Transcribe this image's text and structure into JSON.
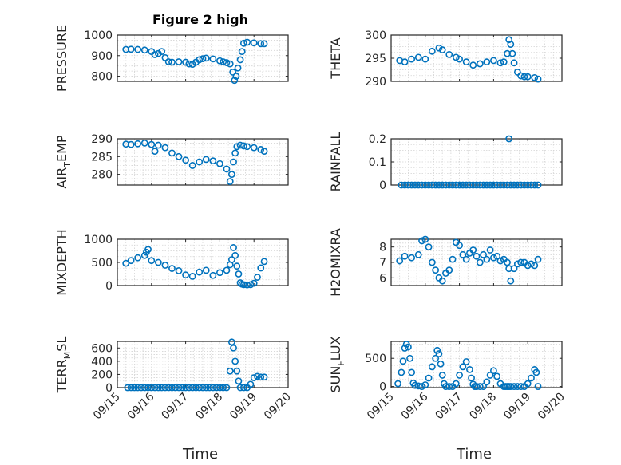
{
  "figure": {
    "title": "Figure 2 high",
    "xlabel": "Time"
  },
  "style": {
    "marker_color": "#0072BD",
    "axis_color": "#262626",
    "grid_color": "#d4d4d4"
  },
  "chart_data": [
    {
      "type": "scatter",
      "title": "Figure 2 high",
      "ylabel_parts": [
        {
          "t": "PRESSURE"
        }
      ],
      "ylim": [
        775,
        1000
      ],
      "yticks": [
        800,
        900,
        1000
      ],
      "yticklabels": [
        "800",
        "900",
        "1000"
      ],
      "xlim": [
        15,
        20
      ],
      "xticks": [
        15,
        16,
        17,
        18,
        19,
        20
      ],
      "xticklabels": [],
      "series": [
        {
          "x": [
            15.25,
            15.4,
            15.6,
            15.8,
            16.0,
            16.1,
            16.2,
            16.3,
            16.4,
            16.5,
            16.6,
            16.8,
            17.0,
            17.1,
            17.2,
            17.3,
            17.4,
            17.5,
            17.6,
            17.8,
            18.0,
            18.1,
            18.2,
            18.3,
            18.38,
            18.43,
            18.48,
            18.53,
            18.6,
            18.65,
            18.7,
            18.8,
            19.0,
            19.2,
            19.3
          ],
          "y": [
            930,
            931,
            930,
            927,
            920,
            905,
            910,
            920,
            890,
            870,
            868,
            870,
            868,
            860,
            858,
            868,
            880,
            885,
            888,
            884,
            875,
            870,
            866,
            860,
            820,
            780,
            800,
            840,
            880,
            920,
            960,
            965,
            962,
            958,
            958
          ]
        }
      ]
    },
    {
      "type": "scatter",
      "ylabel_parts": [
        {
          "t": "THETA"
        }
      ],
      "ylim": [
        290,
        300
      ],
      "yticks": [
        290,
        295,
        300
      ],
      "yticklabels": [
        "290",
        "295",
        "300"
      ],
      "xlim": [
        15,
        20
      ],
      "xticks": [
        15,
        16,
        17,
        18,
        19,
        20
      ],
      "xticklabels": [],
      "series": [
        {
          "x": [
            15.25,
            15.4,
            15.6,
            15.8,
            16.0,
            16.2,
            16.4,
            16.5,
            16.7,
            16.9,
            17.0,
            17.2,
            17.4,
            17.6,
            17.8,
            18.0,
            18.2,
            18.3,
            18.4,
            18.45,
            18.5,
            18.55,
            18.6,
            18.7,
            18.8,
            18.9,
            19.0,
            19.2,
            19.3
          ],
          "y": [
            294.5,
            294.2,
            294.8,
            295.2,
            294.8,
            296.5,
            297.2,
            296.8,
            295.8,
            295.2,
            294.8,
            294.2,
            293.5,
            293.8,
            294.2,
            294.5,
            294.0,
            294.2,
            296.0,
            299.0,
            298.0,
            296.0,
            294.0,
            292.0,
            291.2,
            291.0,
            291.0,
            290.8,
            290.5
          ]
        }
      ]
    },
    {
      "type": "scatter",
      "ylabel_parts": [
        {
          "t": "AIR"
        },
        {
          "t": "T",
          "sub": true
        },
        {
          "t": "EMP"
        }
      ],
      "ylim": [
        277,
        290
      ],
      "yticks": [
        280,
        285,
        290
      ],
      "yticklabels": [
        "280",
        "285",
        "290"
      ],
      "xlim": [
        15,
        20
      ],
      "xticks": [
        15,
        16,
        17,
        18,
        19,
        20
      ],
      "xticklabels": [],
      "series": [
        {
          "x": [
            15.25,
            15.4,
            15.6,
            15.8,
            16.0,
            16.1,
            16.2,
            16.4,
            16.6,
            16.8,
            17.0,
            17.2,
            17.4,
            17.6,
            17.8,
            18.0,
            18.2,
            18.3,
            18.35,
            18.4,
            18.45,
            18.5,
            18.6,
            18.7,
            18.8,
            19.0,
            19.2,
            19.3
          ],
          "y": [
            288.5,
            288.4,
            288.6,
            288.8,
            288.4,
            286.5,
            288.2,
            287.5,
            286.0,
            285.0,
            284.0,
            282.5,
            283.5,
            284.2,
            283.8,
            283.0,
            281.5,
            278.0,
            280.0,
            283.5,
            286.0,
            287.8,
            288.2,
            288.0,
            287.8,
            287.5,
            287.0,
            286.5
          ]
        }
      ]
    },
    {
      "type": "scatter",
      "ylabel_parts": [
        {
          "t": "RAINFALL"
        }
      ],
      "ylim": [
        0,
        0.2
      ],
      "yticks": [
        0,
        0.1,
        0.2
      ],
      "yticklabels": [
        "0",
        "0.1",
        "0.2"
      ],
      "xlim": [
        15,
        20
      ],
      "xticks": [
        15,
        16,
        17,
        18,
        19,
        20
      ],
      "xticklabels": [],
      "series": [
        {
          "x": [
            15.3,
            15.4,
            15.5,
            15.6,
            15.7,
            15.8,
            15.9,
            16.0,
            16.1,
            16.2,
            16.3,
            16.4,
            16.5,
            16.6,
            16.7,
            16.8,
            16.9,
            17.0,
            17.1,
            17.2,
            17.3,
            17.4,
            17.5,
            17.6,
            17.7,
            17.8,
            17.9,
            18.0,
            18.1,
            18.2,
            18.3,
            18.4,
            18.5,
            18.6,
            18.7,
            18.8,
            18.9,
            19.0,
            19.1,
            19.2,
            19.3,
            18.45
          ],
          "y": [
            0,
            0,
            0,
            0,
            0,
            0,
            0,
            0,
            0,
            0,
            0,
            0,
            0,
            0,
            0,
            0,
            0,
            0,
            0,
            0,
            0,
            0,
            0,
            0,
            0,
            0,
            0,
            0,
            0,
            0,
            0,
            0,
            0,
            0,
            0,
            0,
            0,
            0,
            0,
            0,
            0,
            0.2
          ]
        }
      ]
    },
    {
      "type": "scatter",
      "ylabel_parts": [
        {
          "t": "MIXDEPTH"
        }
      ],
      "ylim": [
        0,
        1000
      ],
      "yticks": [
        0,
        500,
        1000
      ],
      "yticklabels": [
        "0",
        "500",
        "1000"
      ],
      "xlim": [
        15,
        20
      ],
      "xticks": [
        15,
        16,
        17,
        18,
        19,
        20
      ],
      "xticklabels": [],
      "series": [
        {
          "x": [
            15.25,
            15.4,
            15.6,
            15.8,
            15.85,
            15.9,
            16.0,
            16.2,
            16.4,
            16.6,
            16.8,
            17.0,
            17.2,
            17.4,
            17.6,
            17.8,
            18.0,
            18.2,
            18.3,
            18.35,
            18.4,
            18.45,
            18.5,
            18.55,
            18.6,
            18.65,
            18.7,
            18.8,
            18.9,
            19.0,
            19.1,
            19.2,
            19.3
          ],
          "y": [
            480,
            540,
            600,
            650,
            720,
            780,
            540,
            500,
            440,
            370,
            320,
            230,
            200,
            290,
            330,
            220,
            280,
            330,
            450,
            560,
            820,
            650,
            420,
            250,
            60,
            30,
            20,
            15,
            20,
            50,
            180,
            380,
            520
          ]
        }
      ]
    },
    {
      "type": "scatter",
      "ylabel_parts": [
        {
          "t": "H2OMIXRA"
        }
      ],
      "ylim": [
        5.5,
        8.5
      ],
      "yticks": [
        6,
        7,
        8
      ],
      "yticklabels": [
        "6",
        "7",
        "8"
      ],
      "xlim": [
        15,
        20
      ],
      "xticks": [
        15,
        16,
        17,
        18,
        19,
        20
      ],
      "xticklabels": [],
      "series": [
        {
          "x": [
            15.25,
            15.4,
            15.6,
            15.8,
            15.9,
            16.0,
            16.1,
            16.2,
            16.3,
            16.4,
            16.5,
            16.6,
            16.7,
            16.8,
            16.9,
            17.0,
            17.1,
            17.2,
            17.3,
            17.4,
            17.5,
            17.6,
            17.7,
            17.8,
            17.9,
            18.0,
            18.1,
            18.2,
            18.3,
            18.4,
            18.45,
            18.5,
            18.6,
            18.7,
            18.8,
            18.9,
            19.0,
            19.1,
            19.2,
            19.3
          ],
          "y": [
            7.1,
            7.4,
            7.3,
            7.5,
            8.4,
            8.5,
            8.0,
            7.0,
            6.5,
            6.0,
            5.8,
            6.3,
            6.5,
            7.2,
            8.3,
            8.1,
            7.5,
            7.2,
            7.6,
            7.8,
            7.4,
            7.0,
            7.5,
            7.2,
            7.8,
            7.3,
            7.4,
            7.1,
            7.2,
            7.0,
            6.6,
            5.8,
            6.6,
            6.9,
            7.0,
            7.0,
            6.8,
            6.9,
            6.8,
            7.2
          ]
        }
      ]
    },
    {
      "type": "scatter",
      "ylabel_parts": [
        {
          "t": "TERR"
        },
        {
          "t": "M",
          "sub": true
        },
        {
          "t": "SL"
        }
      ],
      "ylim": [
        0,
        700
      ],
      "yticks": [
        0,
        200,
        400,
        600
      ],
      "yticklabels": [
        "0",
        "200",
        "400",
        "600"
      ],
      "xlim": [
        15,
        20
      ],
      "xticks": [
        15,
        16,
        17,
        18,
        19,
        20
      ],
      "xticklabels": [
        "09/15",
        "09/16",
        "09/17",
        "09/18",
        "09/19",
        "09/20"
      ],
      "series": [
        {
          "x": [
            15.3,
            15.4,
            15.5,
            15.6,
            15.7,
            15.8,
            15.9,
            16.0,
            16.1,
            16.2,
            16.3,
            16.4,
            16.5,
            16.6,
            16.7,
            16.8,
            16.9,
            17.0,
            17.1,
            17.2,
            17.3,
            17.4,
            17.5,
            17.6,
            17.7,
            17.8,
            17.9,
            18.0,
            18.1,
            18.2,
            18.3,
            18.35,
            18.4,
            18.45,
            18.5,
            18.55,
            18.6,
            18.7,
            18.8,
            18.9,
            19.0,
            19.1,
            19.2,
            19.3
          ],
          "y": [
            0,
            0,
            0,
            0,
            0,
            0,
            0,
            0,
            0,
            0,
            0,
            0,
            0,
            0,
            0,
            0,
            0,
            0,
            0,
            0,
            0,
            0,
            0,
            0,
            0,
            0,
            0,
            0,
            0,
            0,
            250,
            690,
            600,
            400,
            250,
            100,
            0,
            0,
            0,
            50,
            150,
            170,
            160,
            160
          ]
        }
      ]
    },
    {
      "type": "scatter",
      "ylabel_parts": [
        {
          "t": "SUN"
        },
        {
          "t": "F",
          "sub": true
        },
        {
          "t": "LUX"
        }
      ],
      "ylim": [
        -20,
        800
      ],
      "yticks": [
        0,
        500
      ],
      "yticklabels": [
        "0",
        "500"
      ],
      "xlim": [
        15,
        20
      ],
      "xticks": [
        15,
        16,
        17,
        18,
        19,
        20
      ],
      "xticklabels": [
        "09/15",
        "09/16",
        "09/17",
        "09/18",
        "09/19",
        "09/20"
      ],
      "series": [
        {
          "x": [
            15.2,
            15.3,
            15.35,
            15.4,
            15.45,
            15.5,
            15.55,
            15.6,
            15.65,
            15.7,
            15.8,
            15.9,
            16.0,
            16.1,
            16.2,
            16.3,
            16.35,
            16.4,
            16.45,
            16.5,
            16.55,
            16.6,
            16.7,
            16.8,
            16.9,
            17.0,
            17.1,
            17.2,
            17.3,
            17.35,
            17.4,
            17.45,
            17.5,
            17.6,
            17.7,
            17.8,
            17.9,
            18.0,
            18.1,
            18.2,
            18.3,
            18.35,
            18.4,
            18.45,
            18.5,
            18.6,
            18.7,
            18.8,
            18.9,
            19.0,
            19.1,
            19.2,
            19.25,
            19.3
          ],
          "y": [
            50,
            250,
            450,
            680,
            750,
            700,
            500,
            250,
            60,
            20,
            10,
            0,
            30,
            150,
            350,
            500,
            640,
            580,
            400,
            200,
            50,
            0,
            0,
            0,
            50,
            200,
            350,
            440,
            300,
            150,
            40,
            0,
            0,
            0,
            0,
            80,
            200,
            280,
            180,
            50,
            0,
            0,
            0,
            0,
            0,
            0,
            0,
            0,
            0,
            50,
            150,
            300,
            250,
            0
          ]
        }
      ]
    }
  ]
}
